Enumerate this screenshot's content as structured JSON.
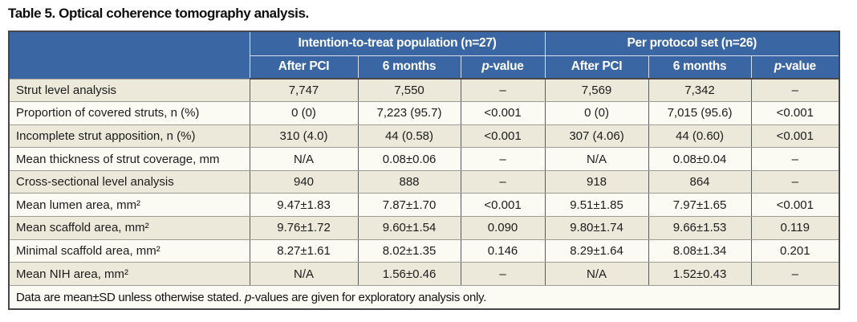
{
  "title": "Table 5. Optical coherence tomography analysis.",
  "colors": {
    "header_blue": "#3a66a3",
    "row_odd_bg": "#ece9db",
    "row_even_bg": "#fbfaf3",
    "outer_border": "#46474a",
    "header_divider": "#d9e0ec",
    "text": "#1c1c1c"
  },
  "header": {
    "groups": [
      {
        "label": "Intention-to-treat population (n=27)"
      },
      {
        "label": "Per protocol set (n=26)"
      }
    ],
    "subcolumns": {
      "after_pci": "After PCI",
      "six_months": "6 months",
      "p_italic": "p",
      "p_suffix": "-value"
    }
  },
  "rows": [
    {
      "label": "Strut level analysis",
      "cells": [
        "7,747",
        "7,550",
        "–",
        "7,569",
        "7,342",
        "–"
      ]
    },
    {
      "label": "Proportion of covered struts, n (%)",
      "cells": [
        "0 (0)",
        "7,223 (95.7)",
        "<0.001",
        "0 (0)",
        "7,015 (95.6)",
        "<0.001"
      ]
    },
    {
      "label": "Incomplete strut apposition, n (%)",
      "cells": [
        "310 (4.0)",
        "44 (0.58)",
        "<0.001",
        "307 (4.06)",
        "44 (0.60)",
        "<0.001"
      ]
    },
    {
      "label": "Mean thickness of strut coverage, mm",
      "cells": [
        "N/A",
        "0.08±0.06",
        "–",
        "N/A",
        "0.08±0.04",
        "–"
      ]
    },
    {
      "label": "Cross-sectional level analysis",
      "cells": [
        "940",
        "888",
        "–",
        "918",
        "864",
        "–"
      ]
    },
    {
      "label": "Mean lumen area, mm²",
      "cells": [
        "9.47±1.83",
        "7.87±1.70",
        "<0.001",
        "9.51±1.85",
        "7.97±1.65",
        "<0.001"
      ]
    },
    {
      "label": "Mean scaffold area, mm²",
      "cells": [
        "9.76±1.72",
        "9.60±1.54",
        "0.090",
        "9.80±1.74",
        "9.66±1.53",
        "0.119"
      ]
    },
    {
      "label": "Minimal scaffold area, mm²",
      "cells": [
        "8.27±1.61",
        "8.02±1.35",
        "0.146",
        "8.29±1.64",
        "8.08±1.34",
        "0.201"
      ]
    },
    {
      "label": "Mean NIH area, mm²",
      "cells": [
        "N/A",
        "1.56±0.46",
        "–",
        "N/A",
        "1.52±0.43",
        "–"
      ]
    }
  ],
  "footnote": {
    "before": "Data are mean±SD unless otherwise stated. ",
    "p_italic": "p",
    "after": "-values are given for exploratory analysis only."
  }
}
